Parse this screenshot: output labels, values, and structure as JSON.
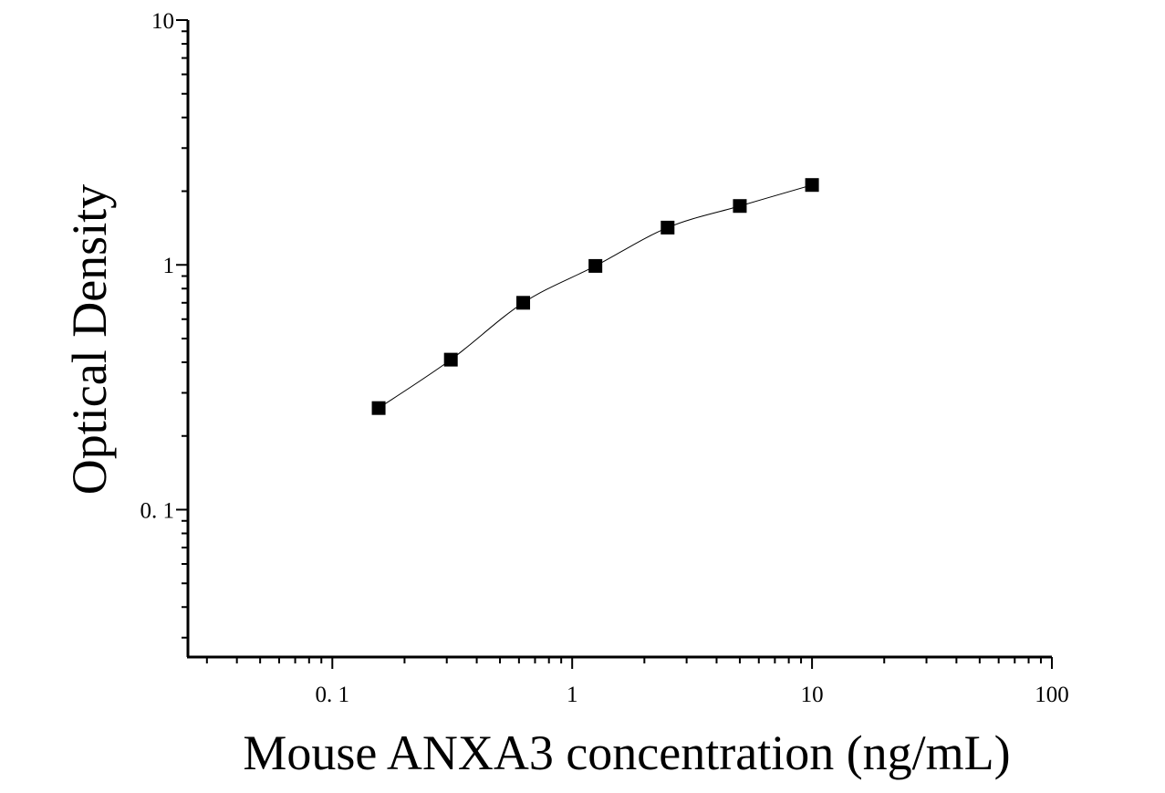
{
  "chart_data": {
    "type": "scatter",
    "title": "",
    "xlabel": "Mouse ANXA3 concentration (ng/mL)",
    "ylabel": "Optical Density",
    "x_scale": "log",
    "y_scale": "log",
    "xlim": [
      0.025,
      100
    ],
    "ylim": [
      0.025,
      10
    ],
    "x_ticks": [
      {
        "value": 0.1,
        "label": "0. 1"
      },
      {
        "value": 1,
        "label": "1"
      },
      {
        "value": 10,
        "label": "10"
      },
      {
        "value": 100,
        "label": "100"
      }
    ],
    "y_ticks": [
      {
        "value": 0.1,
        "label": "0. 1"
      },
      {
        "value": 1,
        "label": "1"
      },
      {
        "value": 10,
        "label": "10"
      }
    ],
    "grid": false,
    "series": [
      {
        "marker": "square",
        "color": "#000000",
        "points": [
          {
            "x": 0.156,
            "y": 0.26
          },
          {
            "x": 0.312,
            "y": 0.41
          },
          {
            "x": 0.625,
            "y": 0.7
          },
          {
            "x": 1.25,
            "y": 0.99
          },
          {
            "x": 2.5,
            "y": 1.42
          },
          {
            "x": 5,
            "y": 1.74
          },
          {
            "x": 10,
            "y": 2.12
          }
        ],
        "fit_line": true
      }
    ]
  }
}
